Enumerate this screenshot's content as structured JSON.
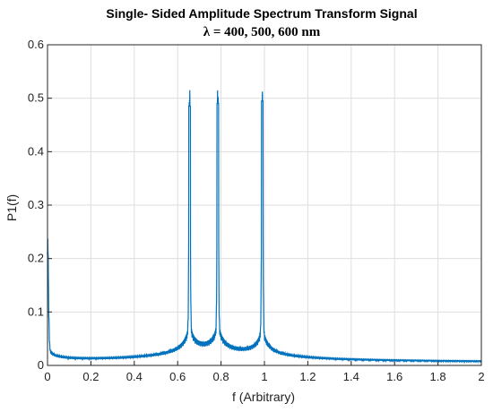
{
  "chart_data": {
    "type": "line",
    "title": "Single- Sided Amplitude Spectrum Transform Signal",
    "subtitle": "λ = 400, 500, 600 nm",
    "xlabel": "f (Arbitrary)",
    "ylabel": "P1(f)",
    "xlim": [
      0,
      2
    ],
    "ylim": [
      0,
      0.6
    ],
    "xticks": [
      0,
      0.2,
      0.4,
      0.6,
      0.8,
      1,
      1.2,
      1.4,
      1.6,
      1.8,
      2
    ],
    "xtick_labels": [
      "0",
      "0.2",
      "0.4",
      "0.6",
      "0.8",
      "1",
      "1.2",
      "1.4",
      "1.6",
      "1.8",
      "2"
    ],
    "yticks": [
      0,
      0.1,
      0.2,
      0.3,
      0.4,
      0.5,
      0.6
    ],
    "ytick_labels": [
      "0",
      "0.1",
      "0.2",
      "0.3",
      "0.4",
      "0.5",
      "0.6"
    ],
    "grid": true,
    "line_color": "#0072BD",
    "series": [
      {
        "peaks": [
          {
            "x": 0.0,
            "y": 0.21
          },
          {
            "x": 0.655,
            "y": 0.495
          },
          {
            "x": 0.785,
            "y": 0.5
          },
          {
            "x": 0.99,
            "y": 0.505
          }
        ],
        "baseline_min": 0.005,
        "sidelobe_max": 0.12
      }
    ]
  }
}
